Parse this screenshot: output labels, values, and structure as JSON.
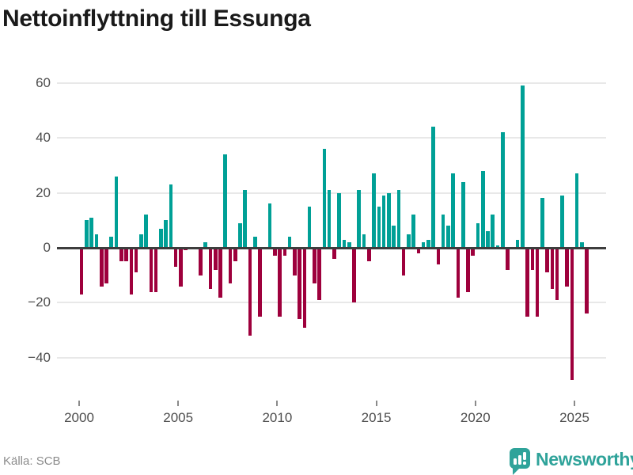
{
  "title": "Nettoinflyttning till Essunga",
  "source": "Källa: SCB",
  "brand": {
    "name": "Newsworthy",
    "icon": "bar-chart-pin-icon",
    "color": "#2fa39a"
  },
  "chart_data": {
    "type": "bar",
    "title": "Nettoinflyttning till Essunga",
    "xlabel": "",
    "ylabel": "",
    "frequency": "quarterly",
    "start_period": "2000-Q1",
    "end_period": "2025-Q3",
    "values": [
      -17,
      10,
      11,
      5,
      -14,
      -13,
      4,
      26,
      -5,
      -5,
      -17,
      -9,
      5,
      12,
      -16,
      -16,
      7,
      10,
      23,
      -7,
      -14,
      -1,
      0,
      0,
      -10,
      2,
      -15,
      -8,
      -18,
      34,
      -13,
      -5,
      9,
      21,
      -32,
      4,
      -25,
      0,
      16,
      -3,
      -25,
      -3,
      4,
      -10,
      -26,
      -29,
      15,
      -13,
      -19,
      36,
      21,
      -4,
      20,
      3,
      2,
      -20,
      21,
      5,
      -5,
      27,
      15,
      19,
      20,
      8,
      21,
      -10,
      5,
      12,
      -2,
      2,
      3,
      44,
      -6,
      12,
      8,
      27,
      -18,
      24,
      -16,
      -3,
      9,
      28,
      6,
      12,
      1,
      42,
      -8,
      0,
      3,
      59,
      -25,
      -8,
      -25,
      18,
      -9,
      -15,
      -19,
      19,
      -14,
      -48,
      27,
      2,
      -24
    ],
    "y_ticks": [
      {
        "value": 60,
        "label": "60"
      },
      {
        "value": 40,
        "label": "40"
      },
      {
        "value": 20,
        "label": "20"
      },
      {
        "value": 0,
        "label": "0"
      },
      {
        "value": -20,
        "label": "−20"
      },
      {
        "value": -40,
        "label": "−40"
      }
    ],
    "x_ticks": [
      {
        "year": 2000,
        "label": "2000"
      },
      {
        "year": 2005,
        "label": "2005"
      },
      {
        "year": 2010,
        "label": "2010"
      },
      {
        "year": 2015,
        "label": "2015"
      },
      {
        "year": 2020,
        "label": "2020"
      },
      {
        "year": 2025,
        "label": "2025"
      }
    ],
    "ylim": [
      -52,
      66
    ],
    "grid": "horizontal",
    "legend": "none",
    "positive_color": "#00a096",
    "negative_color": "#9e003c"
  }
}
